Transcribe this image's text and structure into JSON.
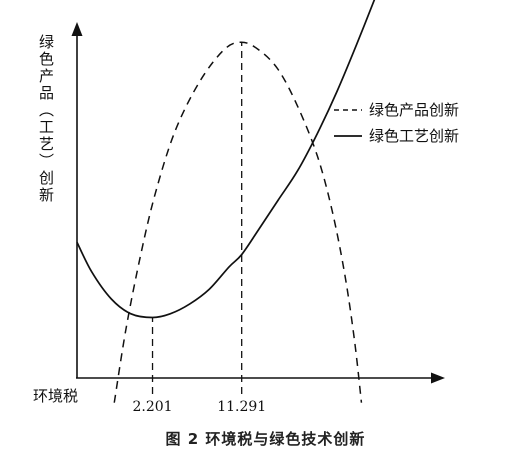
{
  "figure_caption": "图 2 环境税与绿色技术创新",
  "chart_data": {
    "type": "line",
    "title": "",
    "xlabel": "环境税",
    "ylabel": "绿色产品（工艺）创新",
    "x_ticks": [
      "2.201",
      "11.291"
    ],
    "xlim": [
      -5.5,
      31
    ],
    "ylim": [
      0,
      1.45
    ],
    "grid": false,
    "legend_position": "right",
    "series": [
      {
        "name": "绿色产品创新",
        "style": "dashed",
        "color": "#111111",
        "points": [
          [
            -1.7,
            -0.1
          ],
          [
            -0.5,
            0.2
          ],
          [
            1.0,
            0.5
          ],
          [
            2.5,
            0.75
          ],
          [
            4.5,
            1.0
          ],
          [
            7.0,
            1.2
          ],
          [
            9.5,
            1.33
          ],
          [
            11.291,
            1.36
          ],
          [
            13.0,
            1.33
          ],
          [
            15.0,
            1.25
          ],
          [
            17.0,
            1.1
          ],
          [
            19.0,
            0.9
          ],
          [
            20.5,
            0.68
          ],
          [
            21.8,
            0.42
          ],
          [
            22.8,
            0.15
          ],
          [
            23.5,
            -0.1
          ]
        ]
      },
      {
        "name": "绿色工艺创新",
        "style": "solid",
        "color": "#111111",
        "points": [
          [
            -5.5,
            0.55
          ],
          [
            -4.0,
            0.43
          ],
          [
            -2.0,
            0.32
          ],
          [
            0.0,
            0.26
          ],
          [
            2.201,
            0.245
          ],
          [
            4.0,
            0.26
          ],
          [
            6.0,
            0.3
          ],
          [
            8.0,
            0.36
          ],
          [
            10.0,
            0.45
          ],
          [
            11.291,
            0.5
          ],
          [
            13.0,
            0.6
          ],
          [
            15.0,
            0.72
          ],
          [
            17.0,
            0.84
          ],
          [
            19.0,
            0.99
          ],
          [
            21.0,
            1.16
          ],
          [
            23.0,
            1.35
          ],
          [
            25.0,
            1.55
          ]
        ]
      }
    ],
    "reference_lines": [
      {
        "x": 2.201,
        "style": "dashed"
      },
      {
        "x": 11.291,
        "style": "dashed"
      }
    ]
  }
}
